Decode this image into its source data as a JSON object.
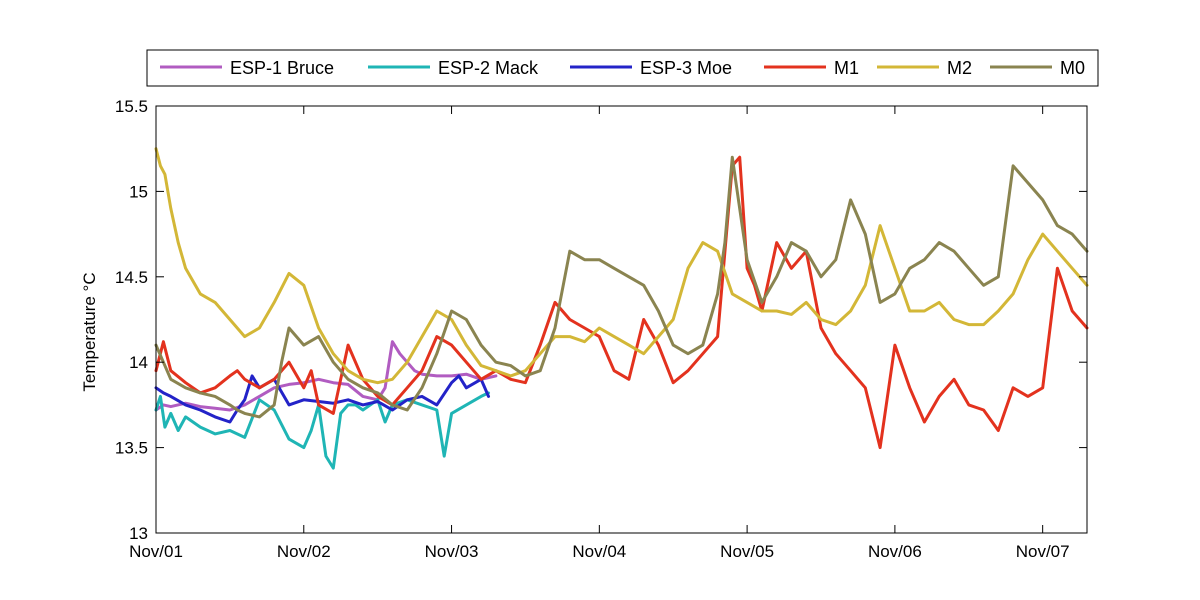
{
  "chart_data": {
    "type": "line",
    "title": "",
    "xlabel": "",
    "ylabel": "Temperature °C",
    "xlim": [
      0,
      6.3
    ],
    "ylim": [
      13,
      15.5
    ],
    "x_ticks": [
      0,
      1,
      2,
      3,
      4,
      5,
      6
    ],
    "x_tick_labels": [
      "Nov/01",
      "Nov/02",
      "Nov/03",
      "Nov/04",
      "Nov/05",
      "Nov/06",
      "Nov/07"
    ],
    "y_ticks": [
      13,
      13.5,
      14,
      14.5,
      15,
      15.5
    ],
    "y_tick_labels": [
      "13",
      "13.5",
      "14",
      "14.5",
      "15",
      "15.5"
    ],
    "grid": false,
    "legend_position": "top, outside",
    "series": [
      {
        "name": "ESP-1 Bruce",
        "color": "#b15cc1",
        "x": [
          0,
          0.05,
          0.1,
          0.2,
          0.3,
          0.4,
          0.5,
          0.6,
          0.7,
          0.8,
          0.9,
          1.0,
          1.1,
          1.2,
          1.3,
          1.4,
          1.5,
          1.55,
          1.6,
          1.65,
          1.7,
          1.75,
          1.8,
          1.9,
          2.0,
          2.1,
          2.2,
          2.3
        ],
        "values": [
          13.72,
          13.75,
          13.74,
          13.76,
          13.74,
          13.73,
          13.72,
          13.75,
          13.8,
          13.85,
          13.87,
          13.88,
          13.9,
          13.88,
          13.87,
          13.8,
          13.78,
          13.85,
          14.12,
          14.05,
          14.0,
          13.95,
          13.93,
          13.92,
          13.92,
          13.93,
          13.9,
          13.92
        ]
      },
      {
        "name": "ESP-2 Mack",
        "color": "#1fb5b5",
        "x": [
          0,
          0.03,
          0.06,
          0.1,
          0.15,
          0.2,
          0.3,
          0.4,
          0.5,
          0.6,
          0.7,
          0.8,
          0.9,
          1.0,
          1.05,
          1.1,
          1.15,
          1.2,
          1.25,
          1.3,
          1.35,
          1.4,
          1.5,
          1.55,
          1.6,
          1.7,
          1.8,
          1.9,
          1.95,
          2.0,
          2.1,
          2.2,
          2.25
        ],
        "values": [
          13.72,
          13.8,
          13.62,
          13.7,
          13.6,
          13.68,
          13.62,
          13.58,
          13.6,
          13.56,
          13.78,
          13.72,
          13.55,
          13.5,
          13.6,
          13.75,
          13.45,
          13.38,
          13.7,
          13.75,
          13.75,
          13.72,
          13.78,
          13.65,
          13.75,
          13.78,
          13.75,
          13.72,
          13.45,
          13.7,
          13.75,
          13.8,
          13.82
        ]
      },
      {
        "name": "ESP-3 Moe",
        "color": "#2323c8",
        "x": [
          0,
          0.05,
          0.1,
          0.2,
          0.3,
          0.4,
          0.5,
          0.55,
          0.6,
          0.65,
          0.7,
          0.8,
          0.9,
          1.0,
          1.1,
          1.2,
          1.3,
          1.4,
          1.5,
          1.6,
          1.7,
          1.8,
          1.9,
          2.0,
          2.05,
          2.1,
          2.2,
          2.25
        ],
        "values": [
          13.85,
          13.82,
          13.8,
          13.75,
          13.72,
          13.68,
          13.65,
          13.72,
          13.78,
          13.92,
          13.85,
          13.9,
          13.75,
          13.78,
          13.77,
          13.76,
          13.78,
          13.75,
          13.77,
          13.72,
          13.78,
          13.8,
          13.75,
          13.88,
          13.92,
          13.85,
          13.9,
          13.8
        ]
      },
      {
        "name": "M1",
        "color": "#e3321e",
        "x": [
          0,
          0.05,
          0.1,
          0.2,
          0.3,
          0.4,
          0.5,
          0.55,
          0.6,
          0.7,
          0.8,
          0.9,
          1.0,
          1.05,
          1.1,
          1.2,
          1.3,
          1.4,
          1.5,
          1.6,
          1.7,
          1.8,
          1.9,
          2.0,
          2.1,
          2.2,
          2.3,
          2.4,
          2.5,
          2.6,
          2.7,
          2.8,
          2.9,
          3.0,
          3.1,
          3.2,
          3.3,
          3.4,
          3.5,
          3.6,
          3.7,
          3.8,
          3.9,
          3.95,
          4.0,
          4.05,
          4.1,
          4.2,
          4.3,
          4.4,
          4.5,
          4.6,
          4.7,
          4.8,
          4.9,
          5.0,
          5.1,
          5.2,
          5.3,
          5.4,
          5.5,
          5.6,
          5.7,
          5.8,
          5.9,
          6.0,
          6.1,
          6.2,
          6.3
        ],
        "values": [
          13.95,
          14.12,
          13.95,
          13.88,
          13.82,
          13.85,
          13.92,
          13.95,
          13.9,
          13.85,
          13.9,
          14.0,
          13.85,
          13.95,
          13.75,
          13.7,
          14.1,
          13.9,
          13.8,
          13.75,
          13.85,
          13.95,
          14.15,
          14.1,
          14.0,
          13.9,
          13.95,
          13.9,
          13.88,
          14.1,
          14.35,
          14.25,
          14.2,
          14.15,
          13.95,
          13.9,
          14.25,
          14.1,
          13.88,
          13.95,
          14.05,
          14.15,
          15.15,
          15.2,
          14.55,
          14.45,
          14.3,
          14.7,
          14.55,
          14.65,
          14.2,
          14.05,
          13.95,
          13.85,
          13.5,
          14.1,
          13.85,
          13.65,
          13.8,
          13.9,
          13.75,
          13.72,
          13.6,
          13.85,
          13.8,
          13.85,
          14.55,
          14.3,
          14.2
        ]
      },
      {
        "name": "M2",
        "color": "#d3b737",
        "x": [
          0,
          0.03,
          0.06,
          0.1,
          0.15,
          0.2,
          0.3,
          0.4,
          0.5,
          0.6,
          0.7,
          0.8,
          0.9,
          1.0,
          1.1,
          1.2,
          1.3,
          1.4,
          1.5,
          1.6,
          1.7,
          1.8,
          1.9,
          2.0,
          2.1,
          2.2,
          2.3,
          2.4,
          2.5,
          2.6,
          2.7,
          2.8,
          2.9,
          3.0,
          3.1,
          3.2,
          3.3,
          3.4,
          3.5,
          3.6,
          3.7,
          3.8,
          3.9,
          4.0,
          4.1,
          4.2,
          4.3,
          4.4,
          4.5,
          4.6,
          4.7,
          4.8,
          4.9,
          5.0,
          5.1,
          5.2,
          5.3,
          5.4,
          5.5,
          5.6,
          5.7,
          5.8,
          5.9,
          6.0,
          6.1,
          6.2,
          6.3
        ],
        "values": [
          15.25,
          15.15,
          15.1,
          14.9,
          14.7,
          14.55,
          14.4,
          14.35,
          14.25,
          14.15,
          14.2,
          14.35,
          14.52,
          14.45,
          14.2,
          14.05,
          13.95,
          13.9,
          13.88,
          13.9,
          14.0,
          14.15,
          14.3,
          14.25,
          14.1,
          13.98,
          13.95,
          13.92,
          13.95,
          14.05,
          14.15,
          14.15,
          14.12,
          14.2,
          14.15,
          14.1,
          14.05,
          14.15,
          14.25,
          14.55,
          14.7,
          14.65,
          14.4,
          14.35,
          14.3,
          14.3,
          14.28,
          14.35,
          14.25,
          14.22,
          14.3,
          14.45,
          14.8,
          14.55,
          14.3,
          14.3,
          14.35,
          14.25,
          14.22,
          14.22,
          14.3,
          14.4,
          14.6,
          14.75,
          14.65,
          14.55,
          14.45
        ]
      },
      {
        "name": "M0",
        "color": "#8a8450",
        "x": [
          0,
          0.05,
          0.1,
          0.2,
          0.3,
          0.4,
          0.5,
          0.55,
          0.6,
          0.7,
          0.8,
          0.85,
          0.9,
          1.0,
          1.1,
          1.2,
          1.3,
          1.4,
          1.5,
          1.6,
          1.7,
          1.8,
          1.9,
          2.0,
          2.1,
          2.2,
          2.3,
          2.4,
          2.5,
          2.6,
          2.7,
          2.8,
          2.9,
          3.0,
          3.1,
          3.2,
          3.3,
          3.4,
          3.5,
          3.6,
          3.7,
          3.8,
          3.85,
          3.9,
          3.95,
          4.0,
          4.1,
          4.2,
          4.3,
          4.4,
          4.5,
          4.6,
          4.7,
          4.8,
          4.9,
          5.0,
          5.1,
          5.2,
          5.3,
          5.4,
          5.5,
          5.6,
          5.7,
          5.8,
          5.9,
          6.0,
          6.1,
          6.2,
          6.3
        ],
        "values": [
          14.1,
          14.0,
          13.9,
          13.85,
          13.82,
          13.8,
          13.75,
          13.72,
          13.7,
          13.68,
          13.75,
          14.0,
          14.2,
          14.1,
          14.15,
          14.0,
          13.9,
          13.85,
          13.82,
          13.75,
          13.72,
          13.85,
          14.05,
          14.3,
          14.25,
          14.1,
          14.0,
          13.98,
          13.92,
          13.95,
          14.2,
          14.65,
          14.6,
          14.6,
          14.55,
          14.5,
          14.45,
          14.3,
          14.1,
          14.05,
          14.1,
          14.4,
          14.7,
          15.2,
          14.9,
          14.6,
          14.35,
          14.5,
          14.7,
          14.65,
          14.5,
          14.6,
          14.95,
          14.75,
          14.35,
          14.4,
          14.55,
          14.6,
          14.7,
          14.65,
          14.55,
          14.45,
          14.5,
          15.15,
          15.05,
          14.95,
          14.8,
          14.75,
          14.65
        ]
      }
    ]
  }
}
